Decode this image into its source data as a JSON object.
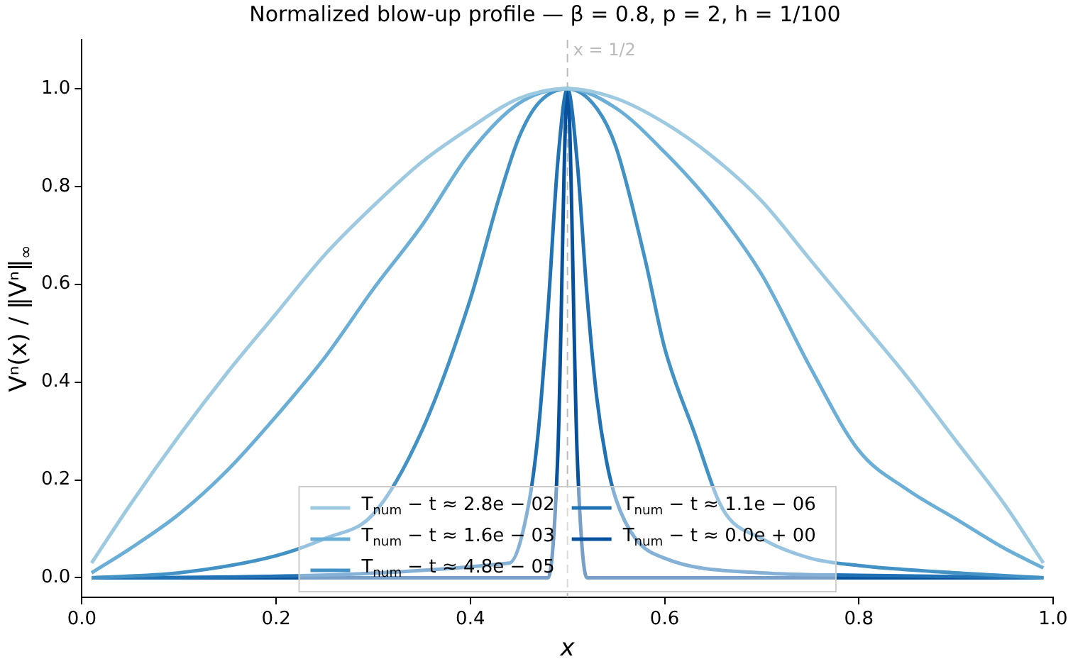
{
  "chart_data": {
    "type": "line",
    "title": "Normalized blow-up profile — β = 0.8, p = 2, h = 1/100",
    "xlabel": "x",
    "ylabel": "Vⁿ(x) / ‖Vⁿ‖$_{∞}$",
    "xlim": [
      0,
      1
    ],
    "ylim": [
      -0.04,
      1.1
    ],
    "xticks": [
      {
        "value": 0,
        "label": "0.0"
      },
      {
        "value": 0.2,
        "label": "0.2"
      },
      {
        "value": 0.4,
        "label": "0.4"
      },
      {
        "value": 0.6,
        "label": "0.6"
      },
      {
        "value": 0.8,
        "label": "0.8"
      },
      {
        "value": 1,
        "label": "1.0"
      }
    ],
    "yticks": [
      {
        "value": 0,
        "label": "0.0"
      },
      {
        "value": 0.2,
        "label": "0.2"
      },
      {
        "value": 0.4,
        "label": "0.4"
      },
      {
        "value": 0.6,
        "label": "0.6"
      },
      {
        "value": 0.8,
        "label": "0.8"
      },
      {
        "value": 1,
        "label": "1.0"
      }
    ],
    "grid": false,
    "legend": "bottom",
    "marker": "none",
    "line_style": "solid",
    "ref_lines": [
      {
        "axis": "x",
        "value": 0.5,
        "label": "x = 1/2",
        "color": "#bbbbbb",
        "line_style": "dashed"
      }
    ],
    "series": [
      {
        "name": "T$_{num}$ − t ≈ 2.8e − 02",
        "color": "#9ecae1",
        "x": [
          0.01,
          0.05,
          0.1,
          0.15,
          0.2,
          0.25,
          0.3,
          0.35,
          0.4,
          0.45,
          0.5,
          0.55,
          0.6,
          0.65,
          0.7,
          0.75,
          0.8,
          0.85,
          0.9,
          0.95,
          0.99
        ],
        "values": [
          0.03,
          0.15,
          0.29,
          0.42,
          0.54,
          0.66,
          0.76,
          0.85,
          0.92,
          0.98,
          1.0,
          0.98,
          0.93,
          0.86,
          0.77,
          0.65,
          0.53,
          0.41,
          0.28,
          0.15,
          0.03
        ]
      },
      {
        "name": "T$_{num}$ − t ≈ 1.6e − 03",
        "color": "#6baed6",
        "x": [
          0.01,
          0.05,
          0.1,
          0.15,
          0.2,
          0.25,
          0.3,
          0.35,
          0.4,
          0.45,
          0.5,
          0.55,
          0.6,
          0.65,
          0.7,
          0.75,
          0.8,
          0.85,
          0.9,
          0.95,
          0.99
        ],
        "values": [
          0.01,
          0.06,
          0.13,
          0.22,
          0.33,
          0.45,
          0.59,
          0.72,
          0.87,
          0.97,
          1.0,
          0.96,
          0.87,
          0.76,
          0.62,
          0.43,
          0.26,
          0.18,
          0.12,
          0.06,
          0.02
        ]
      },
      {
        "name": "T$_{num}$ − t ≈ 4.8e − 05",
        "color": "#4292c6",
        "x": [
          0.01,
          0.1,
          0.2,
          0.25,
          0.3,
          0.35,
          0.4,
          0.43,
          0.45,
          0.47,
          0.5,
          0.53,
          0.55,
          0.58,
          0.6,
          0.63,
          0.66,
          0.7,
          0.75,
          0.8,
          0.9,
          0.99
        ],
        "values": [
          0.0,
          0.01,
          0.045,
          0.08,
          0.13,
          0.3,
          0.57,
          0.78,
          0.9,
          0.97,
          1.0,
          0.96,
          0.88,
          0.65,
          0.47,
          0.3,
          0.14,
          0.08,
          0.04,
          0.025,
          0.01,
          0.0
        ]
      },
      {
        "name": "T$_{num}$ − t ≈ 1.1e − 06",
        "color": "#2171b5",
        "x": [
          0.01,
          0.44,
          0.46,
          0.47,
          0.48,
          0.49,
          0.5,
          0.51,
          0.52,
          0.53,
          0.54,
          0.55,
          0.57,
          0.6,
          0.7,
          0.8,
          0.99
        ],
        "values": [
          0.0,
          0.03,
          0.15,
          0.3,
          0.55,
          0.85,
          1.0,
          0.85,
          0.58,
          0.37,
          0.24,
          0.16,
          0.08,
          0.04,
          0.01,
          0.005,
          0.0
        ]
      },
      {
        "name": "T$_{num}$ − t ≈ 0.0e + 00",
        "color": "#08519c",
        "x": [
          0.01,
          0.2,
          0.4,
          0.48,
          0.49,
          0.5,
          0.51,
          0.52,
          0.6,
          0.8,
          0.99
        ],
        "values": [
          0.0,
          0.0,
          0.0,
          0.0,
          0.25,
          1.0,
          0.25,
          0.0,
          0.0,
          0.0,
          0.0
        ]
      }
    ]
  }
}
